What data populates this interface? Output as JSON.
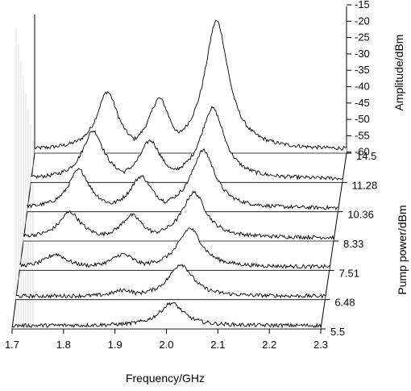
{
  "chart_data": {
    "type": "line",
    "style": "3D waterfall (stacked spectra)",
    "grid": false,
    "xlabel": "Frequency/GHz",
    "x_ticks": [
      "1.7",
      "1.8",
      "1.9",
      "2.0",
      "2.1",
      "2.2",
      "2.3"
    ],
    "xlim": [
      1.7,
      2.3
    ],
    "zlabel": "Amplitude/dBm",
    "z_ticks": [
      "-15",
      "-20",
      "-25",
      "-30",
      "-35",
      "-40",
      "-45",
      "-50",
      "-55",
      "-60"
    ],
    "zlim": [
      -63,
      -15
    ],
    "ylabel": "Pump power/dBm",
    "series": [
      {
        "name": "5.5",
        "peaks": [
          {
            "x": 2.01,
            "y": -55
          }
        ],
        "baseline": -62
      },
      {
        "name": "6.48",
        "peaks": [
          {
            "x": 1.91,
            "y": -60
          },
          {
            "x": 2.02,
            "y": -52
          }
        ],
        "baseline": -62
      },
      {
        "name": "7.51",
        "peaks": [
          {
            "x": 1.77,
            "y": -58
          },
          {
            "x": 1.9,
            "y": -58
          },
          {
            "x": 2.03,
            "y": -50
          }
        ],
        "baseline": -62
      },
      {
        "name": "8.33",
        "peaks": [
          {
            "x": 1.79,
            "y": -54
          },
          {
            "x": 1.91,
            "y": -55
          },
          {
            "x": 2.03,
            "y": -48
          }
        ],
        "baseline": -62
      },
      {
        "name": "10.36",
        "peaks": [
          {
            "x": 1.8,
            "y": -50
          },
          {
            "x": 1.92,
            "y": -52
          },
          {
            "x": 2.04,
            "y": -44
          }
        ],
        "baseline": -62
      },
      {
        "name": "11.28",
        "peaks": [
          {
            "x": 1.82,
            "y": -47
          },
          {
            "x": 1.93,
            "y": -50
          },
          {
            "x": 2.05,
            "y": -40
          }
        ],
        "baseline": -62
      },
      {
        "name": "14.5",
        "peaks": [
          {
            "x": 1.84,
            "y": -44
          },
          {
            "x": 1.94,
            "y": -46
          },
          {
            "x": 2.05,
            "y": -22
          }
        ],
        "baseline": -62
      }
    ]
  }
}
